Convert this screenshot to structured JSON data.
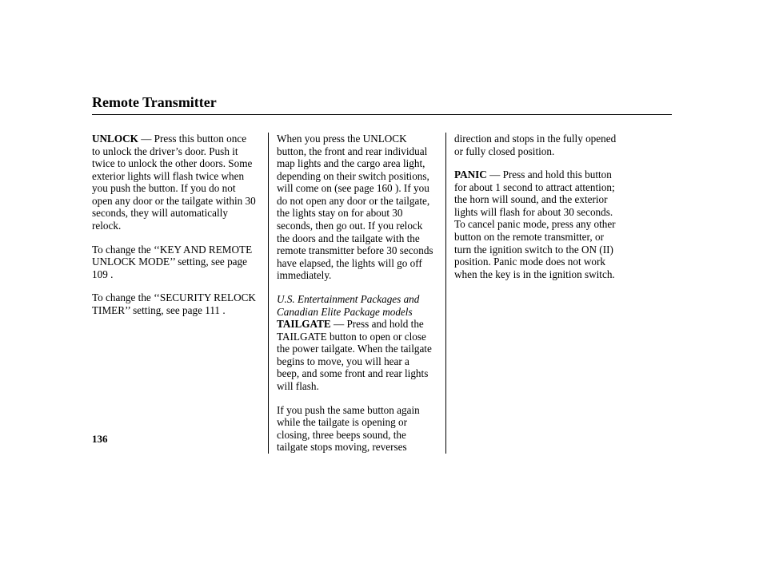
{
  "title": "Remote Transmitter",
  "pageNumber": "136",
  "col1": {
    "p1_bold": "UNLOCK",
    "p1_rest": " — Press this button once to unlock the driver’s door. Push it twice to unlock the other doors. Some exterior lights will flash twice when you push the button. If you do not open any door or the tailgate within 30 seconds, they will automatically relock.",
    "p2": "To change the ‘‘KEY AND REMOTE UNLOCK MODE’’ setting, see page 109 .",
    "p3": "To change the ‘‘SECURITY RELOCK TIMER’’ setting, see page 111 ."
  },
  "col2": {
    "p1": "When you press the UNLOCK button, the front and rear individual map lights and the cargo area light, depending on their switch positions, will come on (see page 160 ). If you do not open any door or the tailgate, the lights stay on for about 30 seconds, then go out. If you relock the doors and the tailgate with the remote transmitter before 30 seconds have elapsed, the lights will go off immediately.",
    "note_italic": "U.S. Entertainment Packages and Canadian Elite Package models",
    "p2_bold": "TAILGATE",
    "p2_rest": " — Press and hold the TAILGATE button to open or close the power tailgate. When the tailgate begins to move, you will hear a beep, and some front and rear lights will flash.",
    "p3": "If you push the same button again while the tailgate is opening or closing, three beeps sound, the tailgate stops moving, reverses"
  },
  "col3": {
    "p1": "direction and stops in the fully opened or fully closed position.",
    "p2_bold": "PANIC",
    "p2_rest": " — Press and hold this button for about 1 second to attract attention; the horn will sound, and the exterior lights will flash for about 30 seconds. To cancel panic mode, press any other button on the remote transmitter, or turn the ignition switch to the ON (II) position. Panic mode does not work when the key is in the ignition switch."
  }
}
